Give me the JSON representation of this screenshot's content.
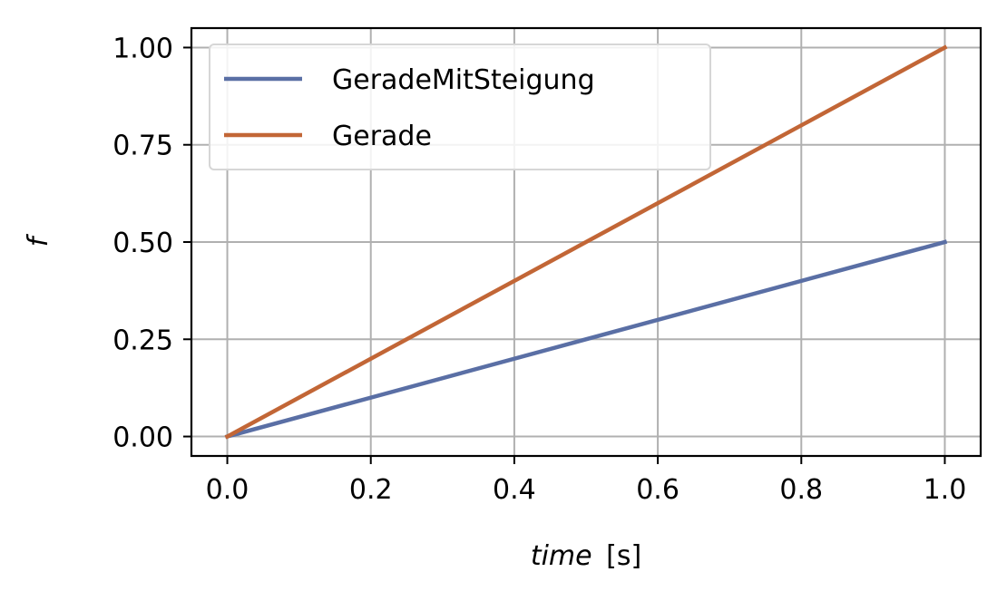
{
  "chart_data": {
    "type": "line",
    "title": "",
    "xlabel_italic": "time",
    "xlabel_unit": "[s]",
    "ylabel": "f",
    "xlim": [
      -0.05,
      1.05
    ],
    "ylim": [
      -0.05,
      1.05
    ],
    "xticks": [
      0.0,
      0.2,
      0.4,
      0.6,
      0.8,
      1.0
    ],
    "xtick_labels": [
      "0.0",
      "0.2",
      "0.4",
      "0.6",
      "0.8",
      "1.0"
    ],
    "yticks": [
      0.0,
      0.25,
      0.5,
      0.75,
      1.0
    ],
    "ytick_labels": [
      "0.00",
      "0.25",
      "0.50",
      "0.75",
      "1.00"
    ],
    "grid": true,
    "legend_position": "top-left",
    "series": [
      {
        "name": "GeradeMitSteigung",
        "color": "#5a6fa5",
        "x": [
          0.0,
          1.0
        ],
        "y": [
          0.0,
          0.5
        ]
      },
      {
        "name": "Gerade",
        "color": "#c26636",
        "x": [
          0.0,
          1.0
        ],
        "y": [
          0.0,
          1.0
        ]
      }
    ]
  }
}
